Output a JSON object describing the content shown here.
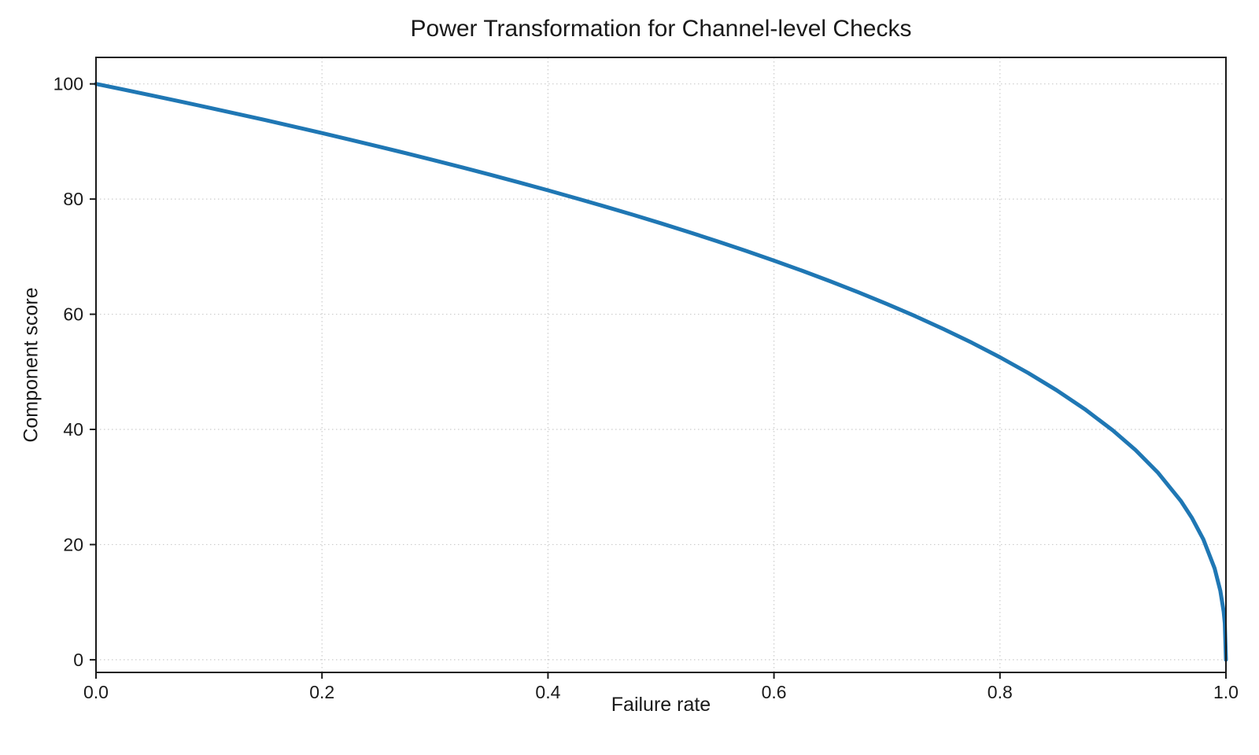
{
  "page": {
    "background": "#ffffff"
  },
  "chart_data": {
    "type": "line",
    "title": "Power Transformation for Channel-level Checks",
    "xlabel": "Failure rate",
    "ylabel": "Component score",
    "xlim": [
      0.0,
      1.0
    ],
    "ylim": [
      -2.2,
      104.6
    ],
    "xticks": {
      "values": [
        0.0,
        0.2,
        0.4,
        0.6,
        0.8,
        1.0
      ],
      "labels": [
        "0.0",
        "0.2",
        "0.4",
        "0.6",
        "0.8",
        "1.0"
      ]
    },
    "yticks": {
      "values": [
        0,
        20,
        40,
        60,
        80,
        100
      ],
      "labels": [
        "0",
        "20",
        "40",
        "60",
        "80",
        "100"
      ]
    },
    "grid": {
      "visible": true,
      "style": "dotted",
      "color": "#cccccc"
    },
    "legend": {
      "visible": false
    },
    "curve_model": "component_score = 100 * (1 - failure_rate)^0.4",
    "series": [
      {
        "name": "component-score-curve",
        "color": "#1f77b4",
        "line_width": 5,
        "x": [
          0,
          0.025,
          0.05,
          0.075,
          0.1,
          0.125,
          0.15,
          0.175,
          0.2,
          0.225,
          0.25,
          0.275,
          0.3,
          0.325,
          0.35,
          0.375,
          0.4,
          0.425,
          0.45,
          0.475,
          0.5,
          0.525,
          0.55,
          0.575,
          0.6,
          0.625,
          0.65,
          0.675,
          0.7,
          0.725,
          0.75,
          0.775,
          0.8,
          0.825,
          0.85,
          0.875,
          0.9,
          0.92,
          0.94,
          0.96,
          0.97,
          0.98,
          0.99,
          0.995,
          0.998,
          0.999,
          1.0
        ],
        "y": [
          100,
          98.99,
          97.97,
          96.93,
          95.87,
          94.8,
          93.71,
          92.59,
          91.46,
          90.31,
          89.13,
          87.93,
          86.7,
          85.45,
          84.17,
          82.86,
          81.52,
          80.14,
          78.73,
          77.28,
          75.79,
          74.25,
          72.66,
          71.02,
          69.31,
          67.55,
          65.71,
          63.79,
          61.78,
          59.67,
          57.43,
          55.07,
          52.53,
          49.8,
          46.82,
          43.53,
          39.81,
          36.41,
          32.45,
          27.6,
          24.6,
          20.91,
          15.85,
          12.01,
          8.33,
          6.31,
          0
        ]
      }
    ],
    "axis_color": "#1a1a1a",
    "tick_length": 8
  }
}
